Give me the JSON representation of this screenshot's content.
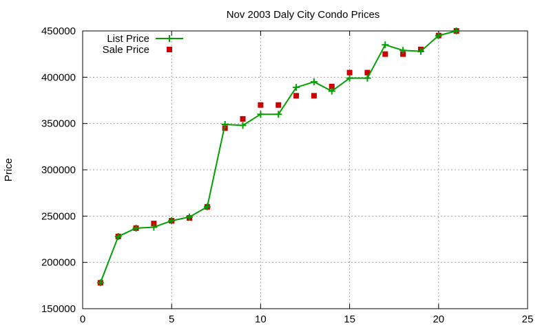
{
  "chart_data": {
    "type": "line",
    "title": "Nov 2003 Daly City Condo Prices",
    "xlabel": "",
    "ylabel": "Price",
    "xlim": [
      0,
      25
    ],
    "ylim": [
      150000,
      450000
    ],
    "x_ticks": [
      0,
      5,
      10,
      15,
      20,
      25
    ],
    "y_ticks": [
      150000,
      200000,
      250000,
      300000,
      350000,
      400000,
      450000
    ],
    "grid": true,
    "legend_position": "top-left",
    "series": [
      {
        "name": "List Price",
        "style": "line+cross",
        "color": "#00a000",
        "x": [
          1,
          2,
          3,
          4,
          5,
          6,
          7,
          8,
          9,
          10,
          11,
          12,
          13,
          14,
          15,
          16,
          17,
          18,
          19,
          20,
          21
        ],
        "values": [
          178000,
          228000,
          237000,
          238000,
          245000,
          249000,
          260000,
          349000,
          348000,
          360000,
          360000,
          389000,
          395000,
          385000,
          399000,
          399000,
          435000,
          429000,
          428000,
          445000,
          450000
        ]
      },
      {
        "name": "Sale Price",
        "style": "square",
        "color": "#cc0000",
        "x": [
          1,
          2,
          3,
          4,
          5,
          6,
          7,
          8,
          9,
          10,
          11,
          12,
          13,
          14,
          15,
          16,
          17,
          18,
          19,
          20,
          21
        ],
        "values": [
          178000,
          228000,
          237000,
          242000,
          245000,
          248000,
          260000,
          345000,
          355000,
          370000,
          370000,
          380000,
          380000,
          390000,
          405000,
          405000,
          425000,
          425000,
          430000,
          445000,
          450000
        ]
      }
    ]
  }
}
